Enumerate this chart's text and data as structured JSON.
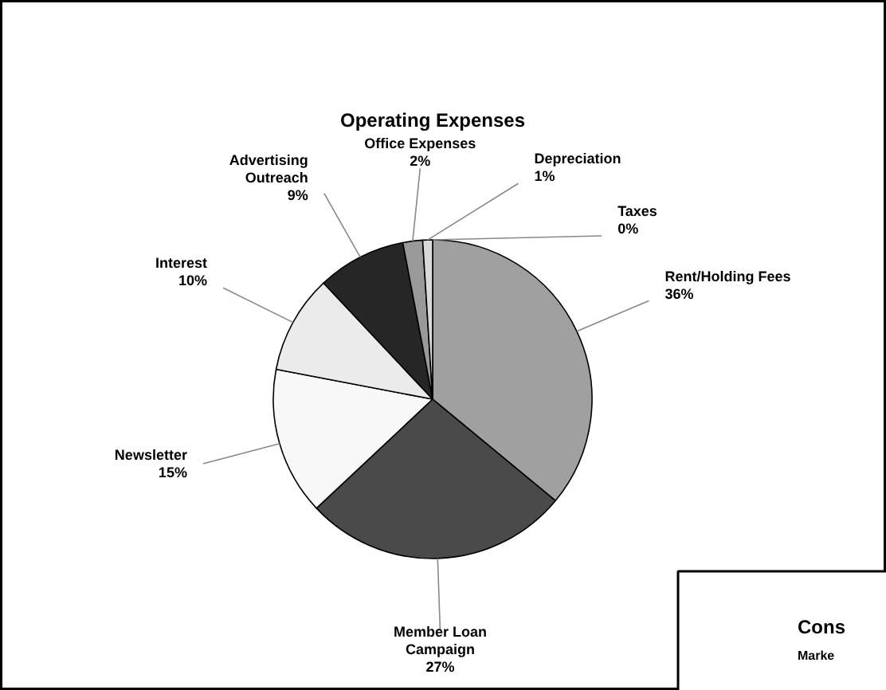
{
  "chart_data": {
    "type": "pie",
    "title": "Operating Expenses",
    "categories": [
      "Rent/Holding Fees",
      "Member Loan Campaign",
      "Newsletter",
      "Interest",
      "Advertising Outreach",
      "Office Expenses",
      "Depreciation",
      "Taxes"
    ],
    "values": [
      36,
      27,
      15,
      10,
      9,
      2,
      1,
      0
    ],
    "value_labels": [
      "36%",
      "27%",
      "15%",
      "10%",
      "9%",
      "2%",
      "1%",
      "0%"
    ],
    "colors": [
      "#a0a0a0",
      "#4a4a4a",
      "#f8f8f8",
      "#ebebeb",
      "#262626",
      "#999999",
      "#d8d8d8",
      "#1a1a1a"
    ],
    "annotations": [
      "Cons",
      "Marke"
    ]
  }
}
